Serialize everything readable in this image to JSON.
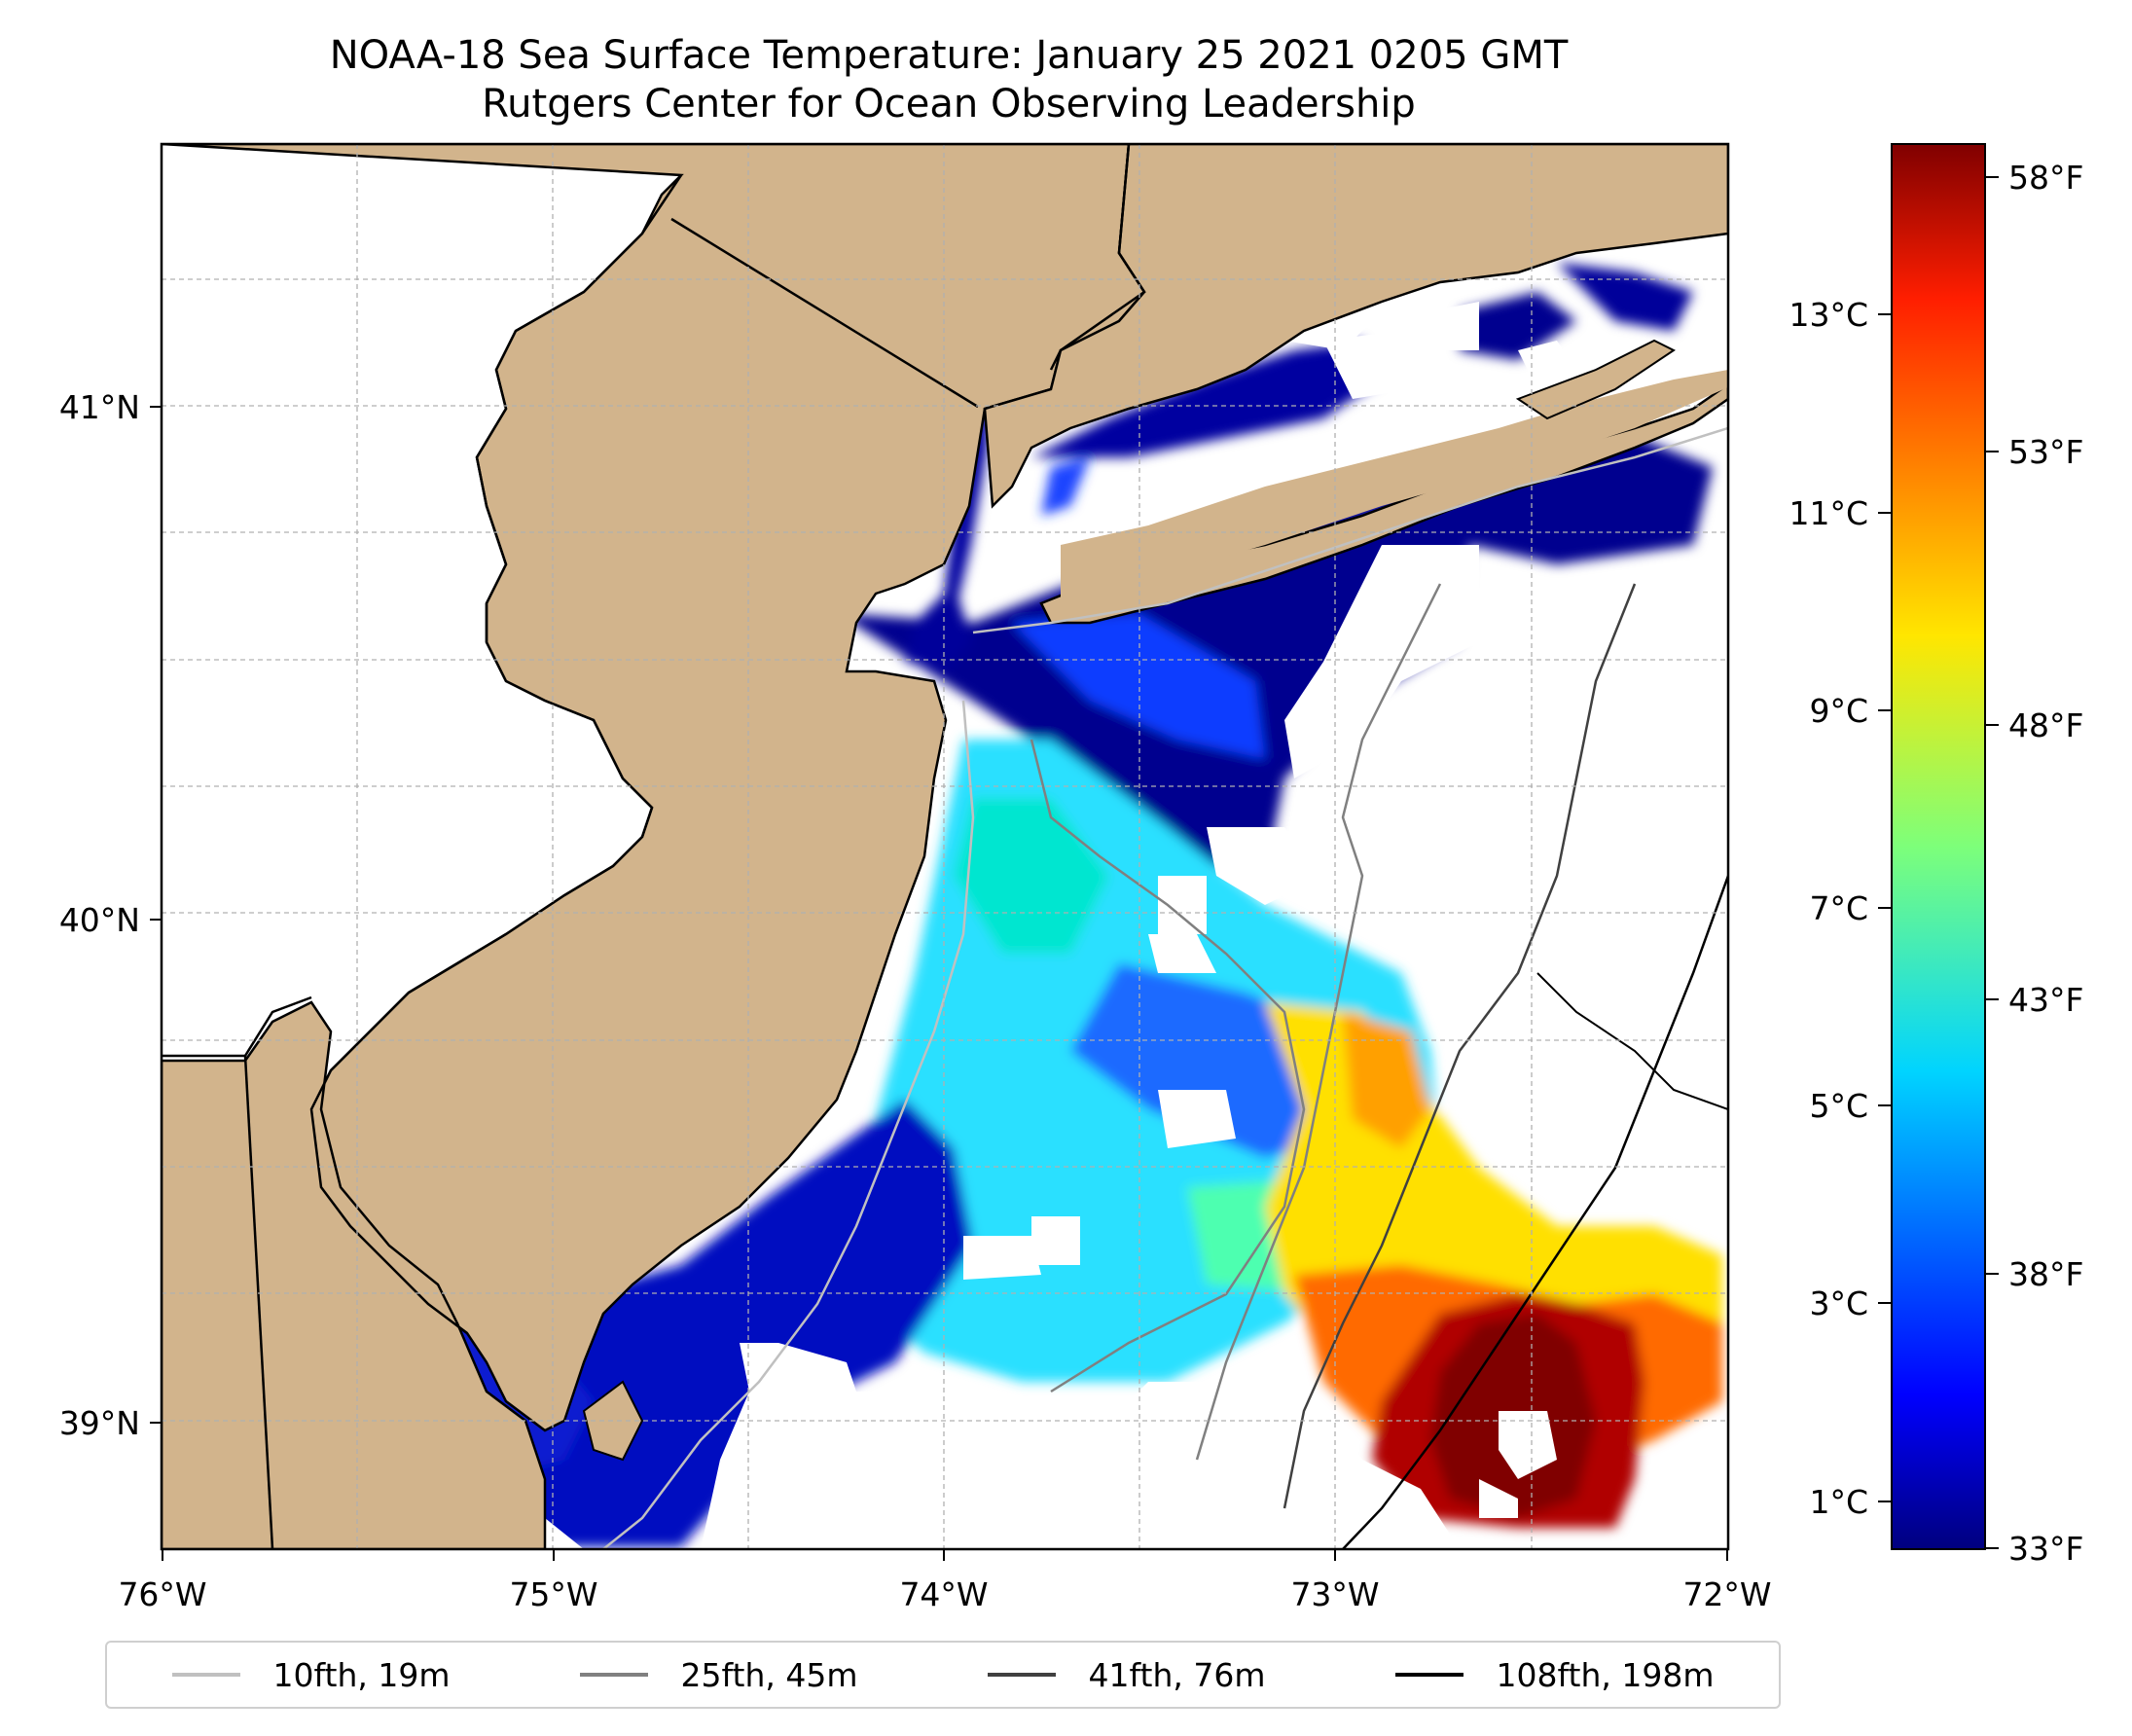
{
  "title": "NOAA-18 Sea Surface Temperature: January 25 2021 0205 GMT",
  "subtitle": "Rutgers Center for Ocean Observing Leadership",
  "map": {
    "lon_range": [
      -76,
      -72
    ],
    "lat_range": [
      38.75,
      41.55
    ],
    "lon_ticks": [
      "76°W",
      "75°W",
      "74°W",
      "73°W",
      "72°W"
    ],
    "lat_ticks": [
      "41°N",
      "40°N",
      "39°N"
    ],
    "land_color": "#d2b48c",
    "grid": true,
    "grid_style": "dashed"
  },
  "colorbar": {
    "colormap": "jet",
    "celsius_ticks": [
      "13°C",
      "11°C",
      "9°C",
      "7°C",
      "5°C",
      "3°C",
      "1°C"
    ],
    "fahrenheit_ticks": [
      "58°F",
      "53°F",
      "48°F",
      "43°F",
      "38°F",
      "33°F"
    ]
  },
  "legend": {
    "placement": "bottom",
    "items": [
      {
        "label": "10fth, 19m",
        "color": "#c0c0c0"
      },
      {
        "label": "25fth, 45m",
        "color": "#808080"
      },
      {
        "label": "41fth, 76m",
        "color": "#404040"
      },
      {
        "label": "108fth, 198m",
        "color": "#000000"
      }
    ]
  }
}
